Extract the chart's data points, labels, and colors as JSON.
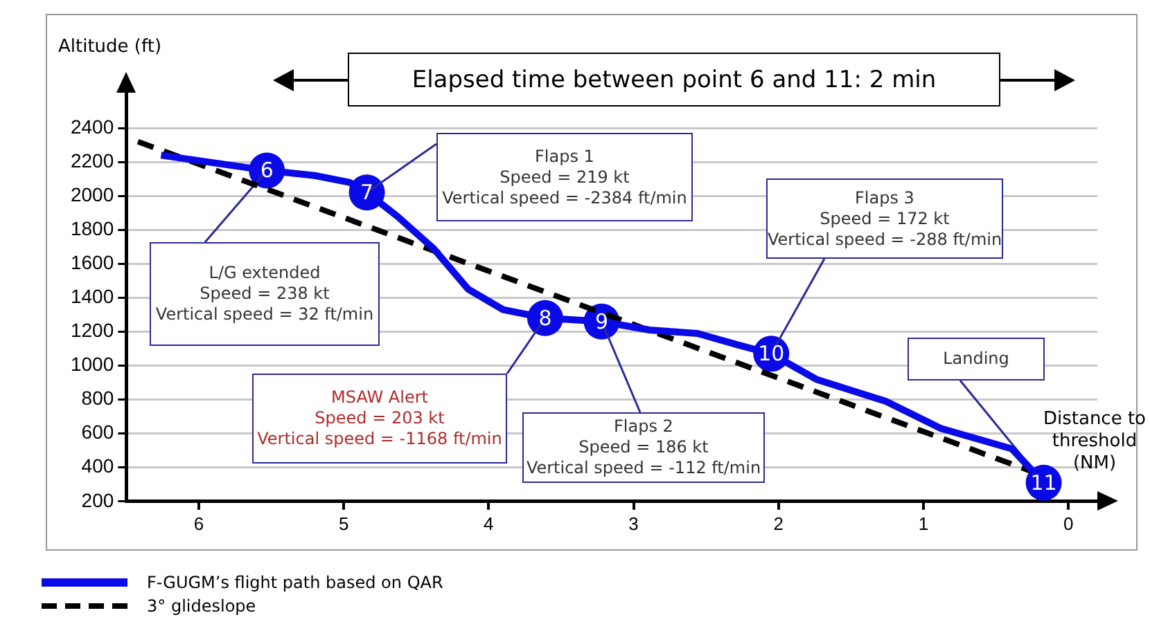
{
  "chart_data": {
    "type": "line",
    "xlabel": "Distance to\nthreshold\n(NM)",
    "ylabel": "Altitude (ft)",
    "xlim": [
      6.5,
      -0.2
    ],
    "xticks": [
      6,
      5,
      4,
      3,
      2,
      1,
      0
    ],
    "ylim": [
      200,
      2600
    ],
    "yticks": [
      200,
      400,
      600,
      800,
      1000,
      1200,
      1400,
      1600,
      1800,
      2000,
      2200,
      2400
    ],
    "grid": "y",
    "legend": "bottom left",
    "series": [
      {
        "name": "F-GUGM’s flight path based on QAR",
        "color": "#0a0ae6",
        "line_style": "solid",
        "x": [
          6.26,
          5.53,
          5.2,
          4.96,
          4.84,
          4.63,
          4.38,
          4.14,
          3.9,
          3.61,
          3.22,
          2.89,
          2.56,
          2.27,
          2.05,
          1.74,
          1.26,
          0.88,
          0.39,
          0.17
        ],
        "values": [
          2240,
          2150,
          2120,
          2080,
          2020,
          1880,
          1690,
          1450,
          1330,
          1280,
          1260,
          1210,
          1190,
          1120,
          1070,
          920,
          790,
          630,
          510,
          310
        ]
      },
      {
        "name": "3° glideslope",
        "color": "#000000",
        "line_style": "dashed",
        "x": [
          6.42,
          0.2
        ],
        "values": [
          2320,
          360
        ]
      }
    ],
    "annotations": [
      {
        "text": "6",
        "x": 5.53,
        "y": 2150
      },
      {
        "text": "7",
        "x": 4.84,
        "y": 2020
      },
      {
        "text": "8",
        "x": 3.61,
        "y": 1280
      },
      {
        "text": "9",
        "x": 3.22,
        "y": 1260
      },
      {
        "text": "10",
        "x": 2.05,
        "y": 1070
      },
      {
        "text": "11",
        "x": 0.17,
        "y": 310
      },
      {
        "text": "L/G extended\nSpeed = 238 kt\nVertical speed = 32 ft/min",
        "x": 5.53,
        "y": 2150
      },
      {
        "text": "Flaps 1\nSpeed = 219 kt\nVertical speed = -2384 ft/min",
        "x": 4.84,
        "y": 2020
      },
      {
        "text": "MSAW Alert\nSpeed = 203 kt\nVertical speed = -1168 ft/min",
        "x": 3.61,
        "y": 1280
      },
      {
        "text": "Flaps 2\nSpeed = 186 kt\nVertical speed = -112 ft/min",
        "x": 3.22,
        "y": 1260
      },
      {
        "text": "Flaps 3\nSpeed = 172 kt\nVertical speed = -288 ft/min",
        "x": 2.05,
        "y": 1070
      },
      {
        "text": "Landing",
        "x": 0.17,
        "y": 310
      },
      "Elapsed time between point 6 and 11: 2 min"
    ]
  }
}
